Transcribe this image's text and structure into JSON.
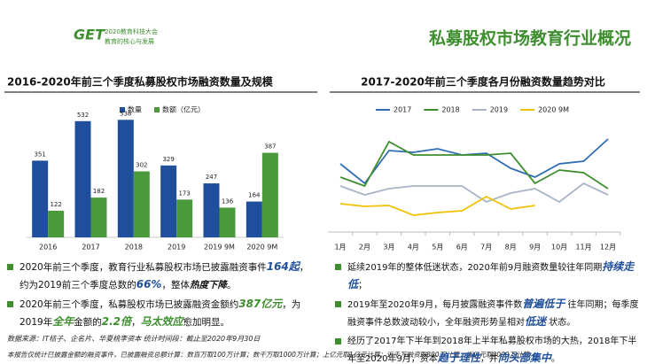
{
  "header": {
    "logo_mark": "GET",
    "logo_title": "2020教育科技大会",
    "logo_subtitle": "教育的核心与发展",
    "title": "私募股权市场教育行业概况"
  },
  "chart_data": [
    {
      "type": "bar",
      "title": "2016-2020年前三个季度私募股权市场融资数量及规模",
      "categories": [
        "2016",
        "2017",
        "2018",
        "2019",
        "2019 9M",
        "2020 9M"
      ],
      "series": [
        {
          "name": "数量",
          "color": "#1f4e9c",
          "values": [
            351,
            532,
            538,
            329,
            247,
            164
          ]
        },
        {
          "name": "数额（亿元）",
          "color": "#4a9a3c",
          "values": [
            122,
            182,
            302,
            173,
            136,
            387
          ]
        }
      ],
      "ylim": [
        0,
        600
      ]
    },
    {
      "type": "line",
      "title": "2017-2020年前三个季度各月份融资数量趋势对比",
      "categories": [
        "1月",
        "2月",
        "3月",
        "4月",
        "5月",
        "6月",
        "7月",
        "8月",
        "9月",
        "10月",
        "11月",
        "12月"
      ],
      "series": [
        {
          "name": "2017",
          "color": "#2f6db5",
          "values": [
            77,
            55,
            92,
            90,
            94,
            87,
            89,
            72,
            62,
            77,
            80,
            105
          ]
        },
        {
          "name": "2018",
          "color": "#3e8e2f",
          "values": [
            62,
            52,
            102,
            87,
            87,
            87,
            87,
            89,
            55,
            70,
            67,
            49
          ]
        },
        {
          "name": "2019",
          "color": "#a9b4c8",
          "values": [
            52,
            42,
            49,
            52,
            52,
            52,
            34,
            44,
            49,
            34,
            55,
            42
          ]
        },
        {
          "name": "2020 9M",
          "color": "#f2c100",
          "values": [
            32,
            29,
            30,
            19,
            22,
            24,
            40,
            26,
            30,
            null,
            null,
            null
          ]
        }
      ],
      "ylim": [
        0,
        120
      ]
    }
  ],
  "left_notes": {
    "bullets": [
      [
        "2020年前三个季度，教育行业私募股权市场已披露融资事件",
        "164起",
        "，约为2019前三个季度总数的",
        "66%",
        "，整体",
        "热度下降",
        "。"
      ],
      [
        "2020年前三个季度，私募股权市场已披露融资金额约",
        "387亿元",
        "，为2019年",
        "全年",
        "金额的",
        "2.2倍",
        "，",
        "马太效应",
        "愈加明显。"
      ]
    ],
    "source": "数据来源：IT桔子、企名片、华夏桃李资本   统计时间段：截止至2020年9月30日",
    "footnote": "本报告仅统计已披露金额的融资事件，已披露融资总额计算：数百万取100万计算；数千万取1000万计算；上亿元取1亿元计算；近千万融资取800万计算；近亿元取8000万计算。"
  },
  "right_notes": {
    "bullets": [
      [
        "延续2019年的整体低迷状态，2020年前9月融资数量较往年同期",
        "持续走低",
        "；"
      ],
      [
        "2019年至2020年9月，每月披露融资事件数",
        "普遍低于",
        " 往年同期；每季度融资事件总数波动较小，全年融资形势呈相对",
        "低迷",
        " 状态。"
      ],
      [
        "经历了2017年下半年到2018年上半年私募股权市场的大热，2018年下半年至2020年9月，资本",
        "趋于理性",
        "，并",
        "向头部集中",
        "。"
      ]
    ]
  }
}
